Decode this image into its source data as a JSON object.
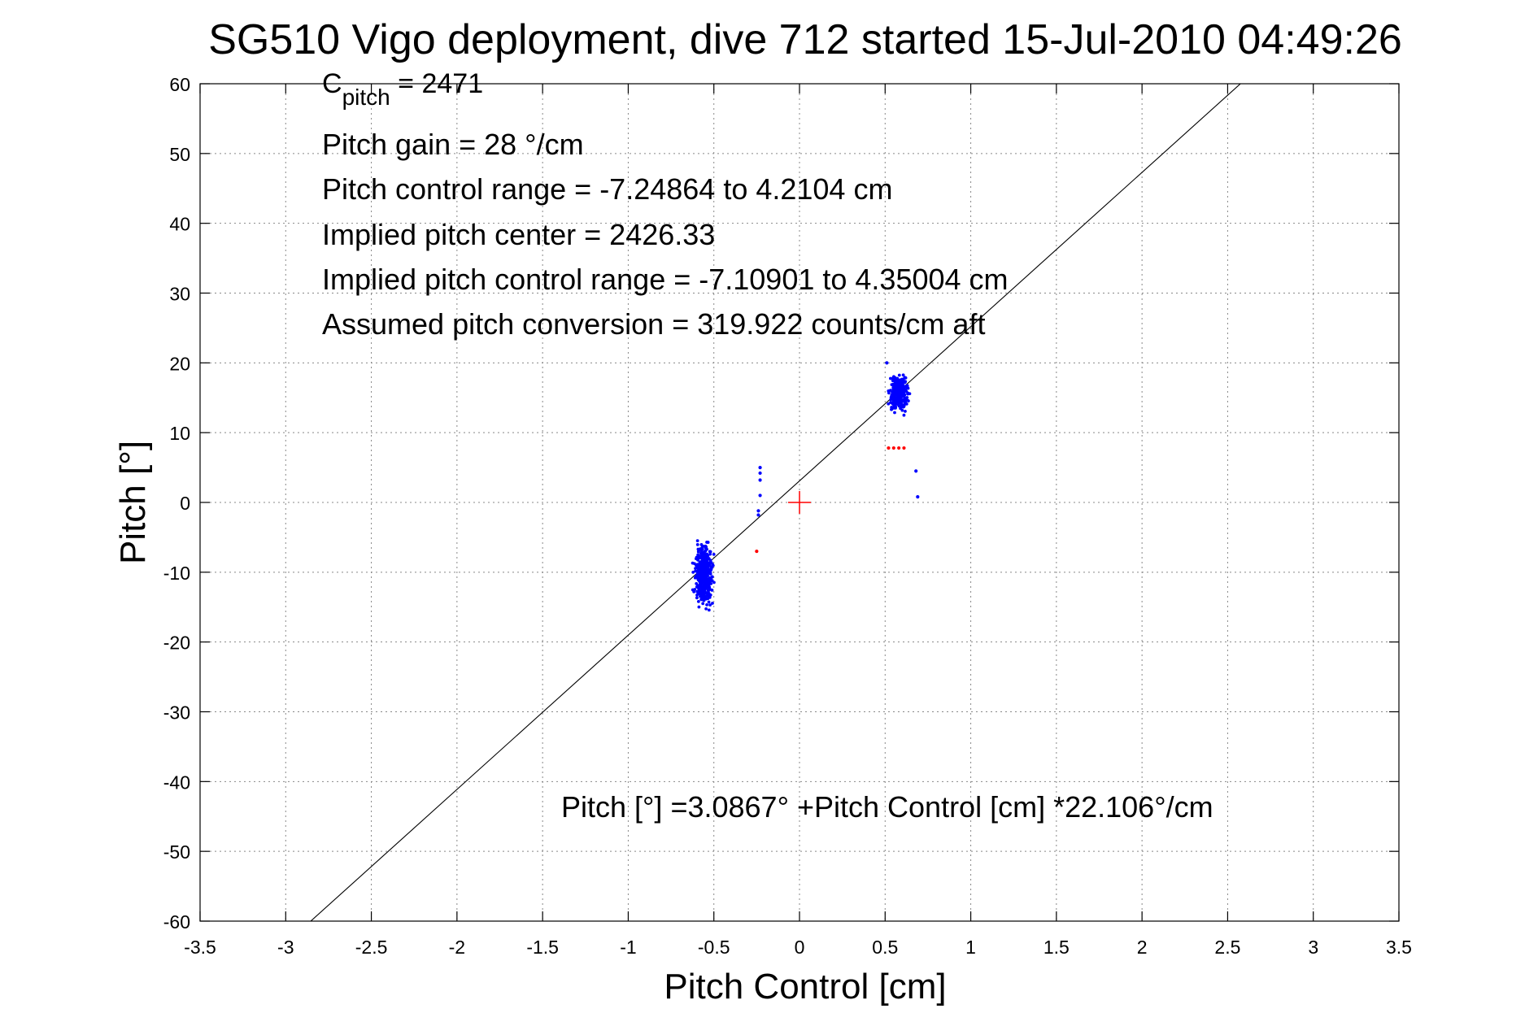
{
  "chart_data": {
    "type": "scatter",
    "title": "SG510 Vigo deployment, dive 712 started 15-Jul-2010 04:49:26",
    "xlabel": "Pitch Control [cm]",
    "ylabel": "Pitch [°]",
    "xlim": [
      -3.5,
      3.5
    ],
    "ylim": [
      -60,
      60
    ],
    "xticks": [
      -3.5,
      -3,
      -2.5,
      -2,
      -1.5,
      -1,
      -0.5,
      0,
      0.5,
      1,
      1.5,
      2,
      2.5,
      3,
      3.5
    ],
    "yticks": [
      -60,
      -50,
      -40,
      -30,
      -20,
      -10,
      0,
      10,
      20,
      30,
      40,
      50,
      60
    ],
    "xtick_labels": [
      "-3.5",
      "-3",
      "-2.5",
      "-2",
      "-1.5",
      "-1",
      "-0.5",
      "0",
      "0.5",
      "1",
      "1.5",
      "2",
      "2.5",
      "3",
      "3.5"
    ],
    "ytick_labels": [
      "-60",
      "-50",
      "-40",
      "-30",
      "-20",
      "-10",
      "0",
      "10",
      "20",
      "30",
      "40",
      "50",
      "60"
    ],
    "grid": true,
    "colors": {
      "primary": "#0000ff",
      "outlier": "#ff0000",
      "fit": "#000000",
      "center": "#ff0000"
    },
    "fit_line": {
      "intercept": 3.0867,
      "slope": 22.106
    },
    "center_marker": {
      "x": 0,
      "y": 0
    },
    "clusters": [
      {
        "color": "primary",
        "x_mean": -0.56,
        "x_spread": 0.035,
        "y_mean": -10.5,
        "y_spread": 2.8,
        "count": 420
      },
      {
        "color": "primary",
        "x_mean": 0.58,
        "x_spread": 0.035,
        "y_mean": 15.8,
        "y_spread": 1.8,
        "count": 300
      }
    ],
    "points": [
      {
        "x": -0.23,
        "y": 5.0,
        "color": "primary"
      },
      {
        "x": -0.23,
        "y": 4.2,
        "color": "primary"
      },
      {
        "x": -0.23,
        "y": 3.2,
        "color": "primary"
      },
      {
        "x": -0.23,
        "y": 1.0,
        "color": "primary"
      },
      {
        "x": -0.24,
        "y": -1.2,
        "color": "primary"
      },
      {
        "x": -0.24,
        "y": -1.8,
        "color": "primary"
      },
      {
        "x": 0.68,
        "y": 4.5,
        "color": "primary"
      },
      {
        "x": 0.69,
        "y": 0.8,
        "color": "primary"
      },
      {
        "x": 0.51,
        "y": 20.0,
        "color": "primary"
      },
      {
        "x": 0.52,
        "y": 7.8,
        "color": "outlier"
      },
      {
        "x": 0.55,
        "y": 7.8,
        "color": "outlier"
      },
      {
        "x": 0.58,
        "y": 7.8,
        "color": "outlier"
      },
      {
        "x": 0.61,
        "y": 7.8,
        "color": "outlier"
      },
      {
        "x": -0.25,
        "y": -7.0,
        "color": "outlier"
      }
    ],
    "annotations": {
      "cpitch_main": "C",
      "cpitch_sub": "pitch",
      "cpitch_value": " = 2471",
      "lines": [
        "Pitch gain = 28 °/cm",
        "Pitch control range = -7.24864 to 4.2104 cm",
        "Implied pitch center = 2426.33",
        "Implied pitch control range = -7.10901 to 4.35004 cm",
        "Assumed pitch conversion = 319.922 counts/cm aft"
      ],
      "equation": "Pitch [°] =3.0867° +Pitch Control [cm] *22.106°/cm"
    }
  }
}
